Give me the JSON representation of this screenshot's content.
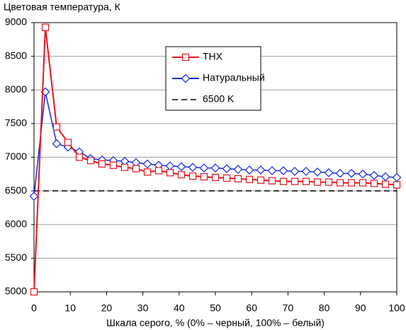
{
  "chart_data": {
    "type": "line",
    "title": "Цветовая температура, К",
    "x_label": "Шкала серого, % (0% – черный, 100% – белый)",
    "x": [
      0,
      3.125,
      6.25,
      9.375,
      12.5,
      15.625,
      18.75,
      21.875,
      25,
      28.125,
      31.25,
      34.375,
      37.5,
      40.625,
      43.75,
      46.875,
      50,
      53.125,
      56.25,
      59.375,
      62.5,
      65.625,
      68.75,
      71.875,
      75,
      78.125,
      81.25,
      84.375,
      87.5,
      90.625,
      93.75,
      96.875,
      100
    ],
    "series": [
      {
        "name": "THX",
        "color": "#e8141c",
        "marker": "square",
        "dashed": false,
        "values": [
          5000,
          8930,
          7450,
          7220,
          7000,
          6950,
          6900,
          6880,
          6850,
          6830,
          6780,
          6800,
          6770,
          6740,
          6720,
          6710,
          6700,
          6690,
          6680,
          6670,
          6660,
          6650,
          6640,
          6640,
          6640,
          6630,
          6630,
          6620,
          6620,
          6620,
          6610,
          6600,
          6590
        ]
      },
      {
        "name": "Натуральный",
        "color": "#1428e0",
        "marker": "diamond",
        "dashed": false,
        "values": [
          6420,
          7970,
          7200,
          7150,
          7080,
          6980,
          6960,
          6950,
          6940,
          6920,
          6900,
          6880,
          6870,
          6860,
          6850,
          6840,
          6840,
          6830,
          6820,
          6810,
          6810,
          6800,
          6800,
          6790,
          6790,
          6780,
          6770,
          6760,
          6760,
          6750,
          6730,
          6710,
          6700
        ]
      },
      {
        "name": "6500 K",
        "color": "#000000",
        "marker": null,
        "dashed": true,
        "values": [
          6500,
          6500,
          6500,
          6500,
          6500,
          6500,
          6500,
          6500,
          6500,
          6500,
          6500,
          6500,
          6500,
          6500,
          6500,
          6500,
          6500,
          6500,
          6500,
          6500,
          6500,
          6500,
          6500,
          6500,
          6500,
          6500,
          6500,
          6500,
          6500,
          6500,
          6500,
          6500,
          6500
        ]
      }
    ],
    "xlim": [
      0,
      100
    ],
    "xticks": [
      0,
      10,
      20,
      30,
      40,
      50,
      60,
      70,
      80,
      90,
      100
    ],
    "ylim": [
      5000,
      9000
    ],
    "yticks": [
      5000,
      5500,
      6000,
      6500,
      7000,
      7500,
      8000,
      8500,
      9000
    ],
    "grid": true
  }
}
